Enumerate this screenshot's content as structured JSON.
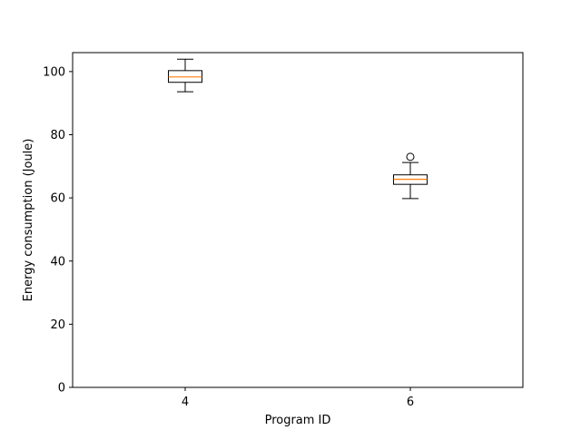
{
  "chart_data": {
    "type": "box",
    "title": "",
    "xlabel": "Program ID",
    "ylabel": "Energy consumption (Joule)",
    "categories": [
      "4",
      "6"
    ],
    "ylim": [
      0,
      106
    ],
    "yticks": [
      0,
      20,
      40,
      60,
      80,
      100
    ],
    "boxes": [
      {
        "label": "4",
        "whisker_low": 93.6,
        "q1": 96.6,
        "median": 98.3,
        "q3": 100.3,
        "whisker_high": 103.9,
        "outliers": []
      },
      {
        "label": "6",
        "whisker_low": 59.8,
        "q1": 64.3,
        "median": 65.9,
        "q3": 67.3,
        "whisker_high": 71.2,
        "outliers": [
          73.0
        ]
      }
    ],
    "colors": {
      "median": "#ff7f0e",
      "box": "#000000"
    },
    "grid": false,
    "legend": "none"
  }
}
